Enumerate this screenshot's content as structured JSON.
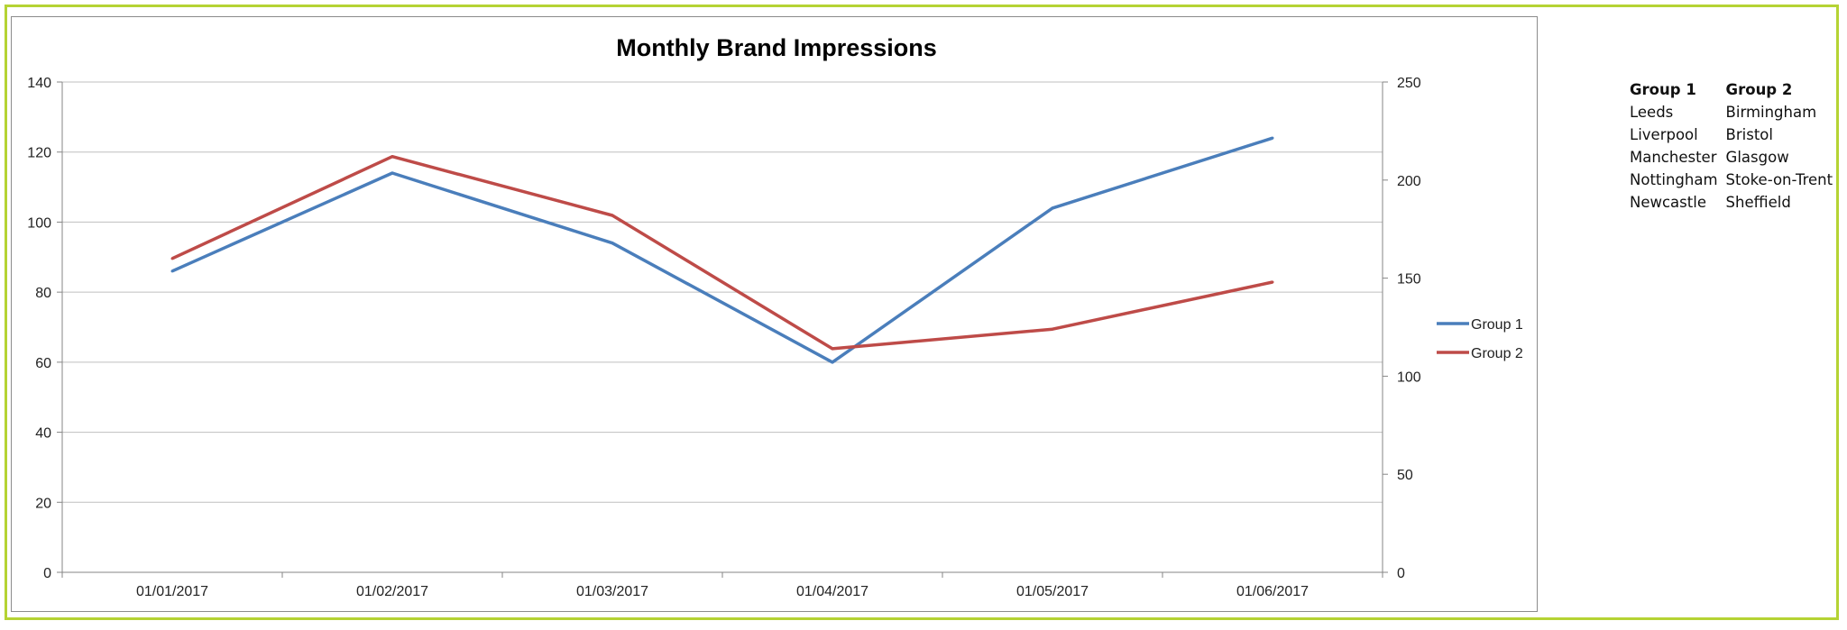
{
  "chart_data": {
    "type": "line",
    "title": "Monthly Brand Impressions",
    "categories": [
      "01/01/2017",
      "01/02/2017",
      "01/03/2017",
      "01/04/2017",
      "01/05/2017",
      "01/06/2017"
    ],
    "series": [
      {
        "name": "Group 1",
        "axis": "left",
        "color": "#4a7ebb",
        "values": [
          86,
          114,
          94,
          60,
          104,
          124
        ]
      },
      {
        "name": "Group 2",
        "axis": "right",
        "color": "#be4b48",
        "values": [
          160,
          212,
          182,
          114,
          124,
          148
        ]
      }
    ],
    "y_left": {
      "min": 0,
      "max": 140,
      "ticks": [
        "0",
        "20",
        "40",
        "60",
        "80",
        "100",
        "120",
        "140"
      ]
    },
    "y_right": {
      "min": 0,
      "max": 250,
      "ticks": [
        "0",
        "50",
        "100",
        "150",
        "200",
        "250"
      ]
    },
    "grid": true,
    "legend_position": "right"
  },
  "groups_table": {
    "headers": [
      "Group 1",
      "Group 2"
    ],
    "rows": [
      [
        "Leeds",
        "Birmingham"
      ],
      [
        "Liverpool",
        "Bristol"
      ],
      [
        "Manchester",
        "Glasgow"
      ],
      [
        "Nottingham",
        "Stoke-on-Trent"
      ],
      [
        "Newcastle",
        "Sheffield"
      ]
    ]
  }
}
